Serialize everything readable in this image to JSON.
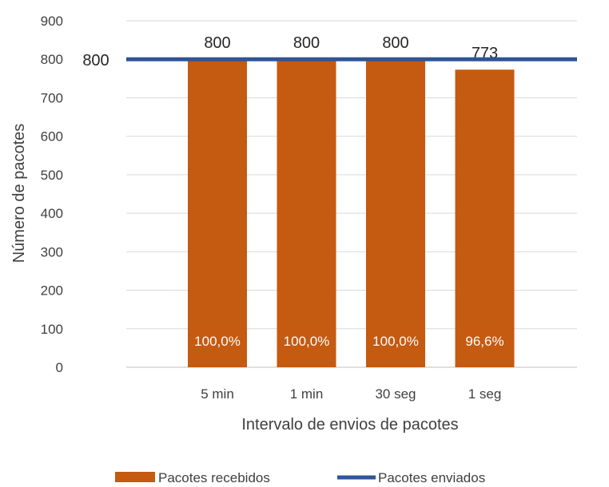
{
  "chart_data": {
    "type": "bar",
    "categories": [
      "5 min",
      "1 min",
      "30 seg",
      "1 seg"
    ],
    "series": [
      {
        "name": "Pacotes recebidos",
        "values": [
          800,
          800,
          800,
          773
        ],
        "value_labels": [
          "800",
          "800",
          "800",
          "773"
        ],
        "percent_labels": [
          "100,0%",
          "100,0%",
          "100,0%",
          "96,6%"
        ],
        "color": "#C55A11"
      },
      {
        "name": "Pacotes enviados",
        "type": "line",
        "value": 800,
        "value_label": "800",
        "color": "#2F5597"
      }
    ],
    "xlabel": "Intervalo de envios de pacotes",
    "ylabel": "Número de pacotes",
    "ylim": [
      0,
      900
    ],
    "yticks": [
      "0",
      "100",
      "200",
      "300",
      "400",
      "500",
      "600",
      "700",
      "800",
      "900"
    ],
    "grid": true,
    "legend_position": "bottom"
  }
}
